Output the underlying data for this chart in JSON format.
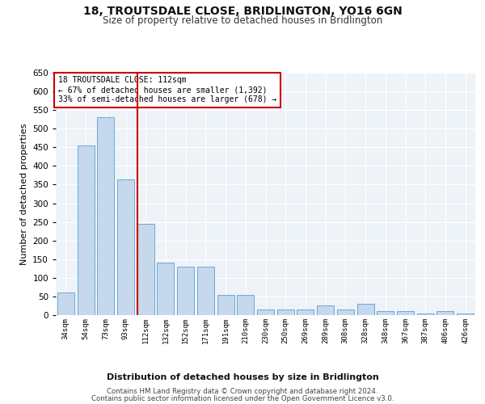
{
  "title": "18, TROUTSDALE CLOSE, BRIDLINGTON, YO16 6GN",
  "subtitle": "Size of property relative to detached houses in Bridlington",
  "xlabel": "Distribution of detached houses by size in Bridlington",
  "ylabel": "Number of detached properties",
  "footer_line1": "Contains HM Land Registry data © Crown copyright and database right 2024.",
  "footer_line2": "Contains public sector information licensed under the Open Government Licence v3.0.",
  "annotation_line1": "18 TROUTSDALE CLOSE: 112sqm",
  "annotation_line2": "← 67% of detached houses are smaller (1,392)",
  "annotation_line3": "33% of semi-detached houses are larger (678) →",
  "categories": [
    "34sqm",
    "54sqm",
    "73sqm",
    "93sqm",
    "112sqm",
    "132sqm",
    "152sqm",
    "171sqm",
    "191sqm",
    "210sqm",
    "230sqm",
    "250sqm",
    "269sqm",
    "289sqm",
    "308sqm",
    "328sqm",
    "348sqm",
    "367sqm",
    "387sqm",
    "406sqm",
    "426sqm"
  ],
  "values": [
    60,
    455,
    530,
    365,
    245,
    140,
    130,
    130,
    55,
    55,
    15,
    15,
    15,
    25,
    15,
    30,
    10,
    10,
    5,
    10,
    5
  ],
  "bar_color": "#c5d8ec",
  "bar_edge_color": "#5a9fd4",
  "redline_color": "#cc0000",
  "annotation_box_color": "#cc0000",
  "background_color": "#ffffff",
  "plot_background_color": "#eef3f8",
  "grid_color": "#ffffff",
  "ylim": [
    0,
    650
  ],
  "yticks": [
    0,
    50,
    100,
    150,
    200,
    250,
    300,
    350,
    400,
    450,
    500,
    550,
    600,
    650
  ]
}
